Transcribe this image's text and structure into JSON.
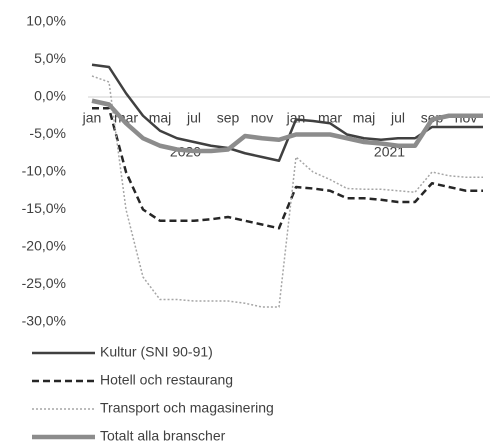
{
  "chart_data": {
    "type": "line",
    "categories": [
      "jan",
      null,
      "mar",
      null,
      "maj",
      null,
      "jul",
      null,
      "sep",
      null,
      "nov",
      null,
      "jan",
      null,
      "mar",
      null,
      "maj",
      null,
      "jul",
      null,
      "sep",
      null,
      "nov",
      null
    ],
    "annotations": [
      "2020",
      "2021"
    ],
    "series": [
      {
        "name": "Kultur (SNI 90-91)",
        "color": "#404040",
        "line_style": "solid",
        "values": [
          4.3,
          4.0,
          0.5,
          -2.5,
          -4.5,
          -5.5,
          -6.0,
          -6.5,
          -6.8,
          -7.5,
          -8.0,
          -8.5,
          -3.0,
          -3.2,
          -3.5,
          -5.0,
          -5.5,
          -5.7,
          -5.5,
          -5.5,
          -4.0,
          -4.0,
          -4.0,
          -4.0
        ]
      },
      {
        "name": "Hotell och restaurang",
        "color": "#262626",
        "line_style": "dashed",
        "values": [
          -1.5,
          -1.5,
          -10,
          -15,
          -16.5,
          -16.5,
          -16.5,
          -16.3,
          -16.0,
          -16.5,
          -17.0,
          -17.5,
          -12.0,
          -12.2,
          -12.5,
          -13.5,
          -13.5,
          -13.7,
          -14.0,
          -14.0,
          -11.5,
          -12.0,
          -12.5,
          -12.5
        ]
      },
      {
        "name": "Transport och magasinering",
        "color": "#a6a6a6",
        "line_style": "dotted",
        "values": [
          2.8,
          2.0,
          -15,
          -24,
          -27,
          -27,
          -27.2,
          -27.2,
          -27.2,
          -27.5,
          -28,
          -28,
          -8,
          -10,
          -11,
          -12.2,
          -12.3,
          -12.3,
          -12.5,
          -12.7,
          -10,
          -10.5,
          -10.7,
          -10.7
        ]
      },
      {
        "name": "Totalt alla branscher",
        "color": "#8c8c8c",
        "line_style": "thick",
        "values": [
          -0.5,
          -1.0,
          -3.5,
          -5.5,
          -6.5,
          -7.0,
          -7.2,
          -7.2,
          -7.0,
          -5.2,
          -5.5,
          -5.7,
          -5.0,
          -5.0,
          -5.0,
          -5.5,
          -6.0,
          -6.2,
          -6.5,
          -6.5,
          -3.0,
          -2.5,
          -2.5,
          -2.5
        ]
      }
    ],
    "ylim": [
      -30,
      10
    ],
    "yticks": [
      {
        "value": -30,
        "label": "-30,0%"
      },
      {
        "value": -25,
        "label": "-25,0%"
      },
      {
        "value": -20,
        "label": "-20,0%"
      },
      {
        "value": -15,
        "label": "-15,0%"
      },
      {
        "value": -10,
        "label": "-10,0%"
      },
      {
        "value": -5,
        "label": "-5,0%"
      },
      {
        "value": 0,
        "label": "0,0%"
      },
      {
        "value": 5,
        "label": "5,0%"
      },
      {
        "value": 10,
        "label": "10,0%"
      }
    ],
    "legend": "bottom"
  }
}
